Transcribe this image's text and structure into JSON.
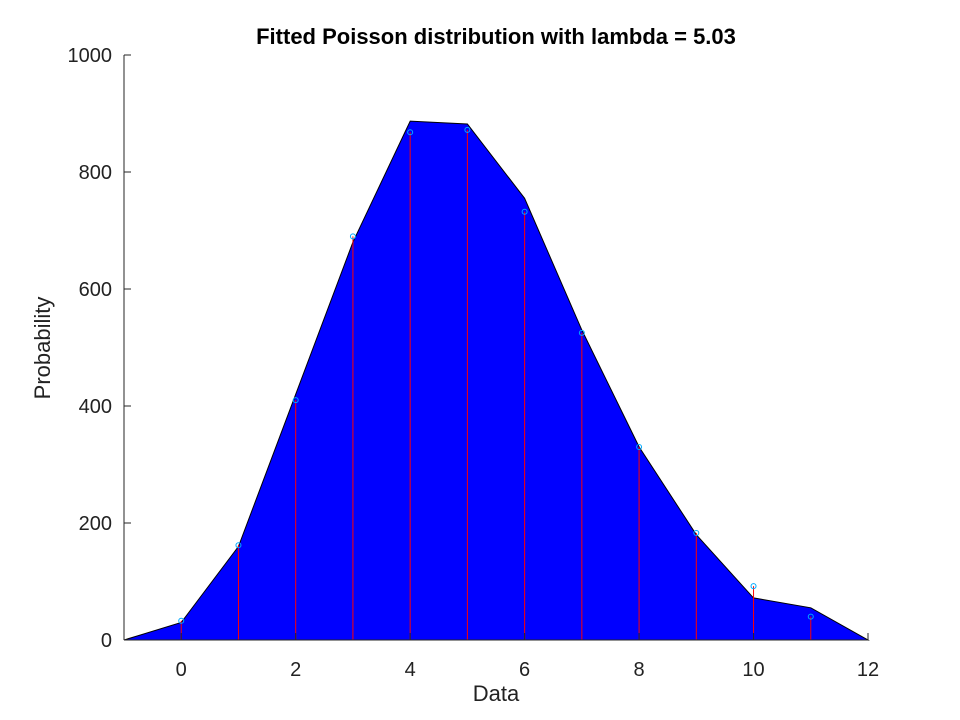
{
  "chart_data": {
    "type": "area",
    "title": "Fitted Poisson distribution with lambda = 5.03",
    "xlabel": "Data",
    "ylabel": "Probability",
    "xlim": [
      -1,
      12
    ],
    "ylim": [
      0,
      1000
    ],
    "xticks": [
      "0",
      "2",
      "4",
      "6",
      "8",
      "10",
      "12"
    ],
    "yticks": [
      "0",
      "200",
      "400",
      "600",
      "800",
      "1000"
    ],
    "grid": false,
    "colors": {
      "area_fill": "#0000ff",
      "area_edge": "#000000",
      "stem": "#ff0000",
      "marker": "#00aaff"
    },
    "series": [
      {
        "type": "area",
        "x": [
          -1,
          0,
          1,
          2,
          3,
          4,
          5,
          6,
          7,
          8,
          9,
          10,
          11,
          12
        ],
        "y": [
          0,
          30,
          160,
          420,
          680,
          887,
          882,
          755,
          530,
          330,
          180,
          72,
          55,
          0
        ]
      },
      {
        "type": "stem",
        "x": [
          0,
          1,
          2,
          3,
          4,
          5,
          6,
          7,
          8,
          9,
          10,
          11
        ],
        "y": [
          33,
          162,
          410,
          690,
          868,
          872,
          732,
          525,
          330,
          183,
          92,
          40
        ]
      }
    ]
  }
}
